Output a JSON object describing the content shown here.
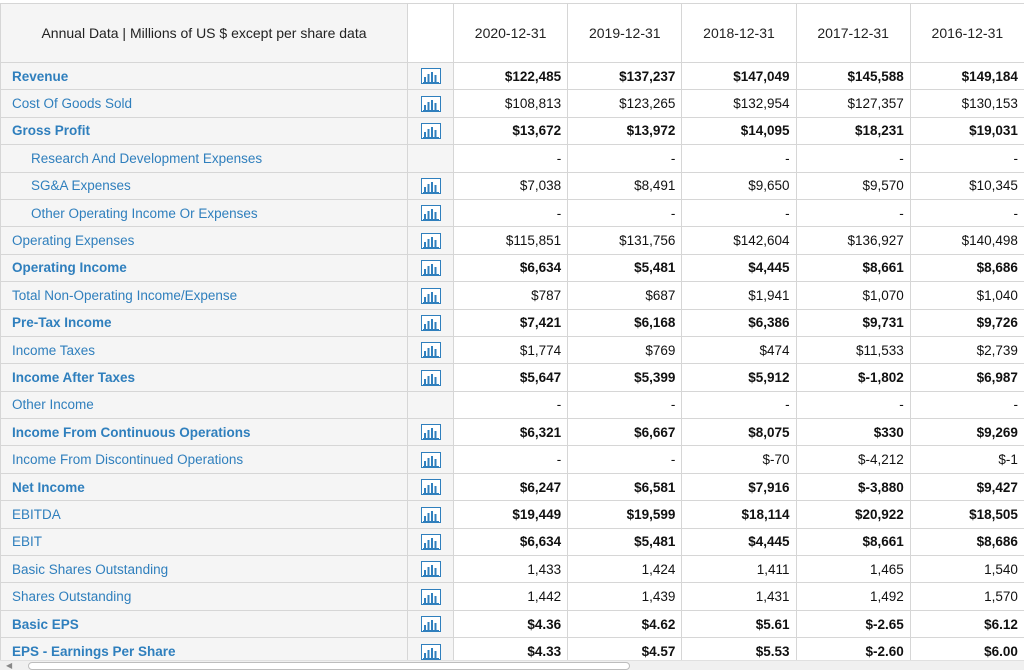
{
  "header": {
    "label": "Annual Data | Millions of US $ except per share data",
    "years": [
      "2020-12-31",
      "2019-12-31",
      "2018-12-31",
      "2017-12-31",
      "2016-12-31"
    ]
  },
  "icon": "bar-chart-icon",
  "colors": {
    "link": "#2f7fbd",
    "label_bg": "#f5f5f5",
    "border": "#d6d6d6"
  },
  "rows": [
    {
      "label": "Revenue",
      "bold": true,
      "indent": false,
      "icon": true,
      "values": [
        "$122,485",
        "$137,237",
        "$147,049",
        "$145,588",
        "$149,184"
      ]
    },
    {
      "label": "Cost Of Goods Sold",
      "bold": false,
      "indent": false,
      "icon": true,
      "values": [
        "$108,813",
        "$123,265",
        "$132,954",
        "$127,357",
        "$130,153"
      ]
    },
    {
      "label": "Gross Profit",
      "bold": true,
      "indent": false,
      "icon": true,
      "values": [
        "$13,672",
        "$13,972",
        "$14,095",
        "$18,231",
        "$19,031"
      ]
    },
    {
      "label": "Research And Development Expenses",
      "bold": false,
      "indent": true,
      "icon": false,
      "values": [
        "-",
        "-",
        "-",
        "-",
        "-"
      ]
    },
    {
      "label": "SG&A Expenses",
      "bold": false,
      "indent": true,
      "icon": true,
      "values": [
        "$7,038",
        "$8,491",
        "$9,650",
        "$9,570",
        "$10,345"
      ]
    },
    {
      "label": "Other Operating Income Or Expenses",
      "bold": false,
      "indent": true,
      "icon": true,
      "values": [
        "-",
        "-",
        "-",
        "-",
        "-"
      ]
    },
    {
      "label": "Operating Expenses",
      "bold": false,
      "indent": false,
      "icon": true,
      "values": [
        "$115,851",
        "$131,756",
        "$142,604",
        "$136,927",
        "$140,498"
      ]
    },
    {
      "label": "Operating Income",
      "bold": true,
      "indent": false,
      "icon": true,
      "values": [
        "$6,634",
        "$5,481",
        "$4,445",
        "$8,661",
        "$8,686"
      ]
    },
    {
      "label": "Total Non-Operating Income/Expense",
      "bold": false,
      "indent": false,
      "icon": true,
      "values": [
        "$787",
        "$687",
        "$1,941",
        "$1,070",
        "$1,040"
      ]
    },
    {
      "label": "Pre-Tax Income",
      "bold": true,
      "indent": false,
      "icon": true,
      "values": [
        "$7,421",
        "$6,168",
        "$6,386",
        "$9,731",
        "$9,726"
      ]
    },
    {
      "label": "Income Taxes",
      "bold": false,
      "indent": false,
      "icon": true,
      "values": [
        "$1,774",
        "$769",
        "$474",
        "$11,533",
        "$2,739"
      ]
    },
    {
      "label": "Income After Taxes",
      "bold": true,
      "indent": false,
      "icon": true,
      "values": [
        "$5,647",
        "$5,399",
        "$5,912",
        "$-1,802",
        "$6,987"
      ]
    },
    {
      "label": "Other Income",
      "bold": false,
      "indent": false,
      "icon": false,
      "values": [
        "-",
        "-",
        "-",
        "-",
        "-"
      ]
    },
    {
      "label": "Income From Continuous Operations",
      "bold": true,
      "indent": false,
      "icon": true,
      "values": [
        "$6,321",
        "$6,667",
        "$8,075",
        "$330",
        "$9,269"
      ]
    },
    {
      "label": "Income From Discontinued Operations",
      "bold": false,
      "indent": false,
      "icon": true,
      "values": [
        "-",
        "-",
        "$-70",
        "$-4,212",
        "$-1"
      ]
    },
    {
      "label": "Net Income",
      "bold": true,
      "indent": false,
      "icon": true,
      "values": [
        "$6,247",
        "$6,581",
        "$7,916",
        "$-3,880",
        "$9,427"
      ]
    },
    {
      "label": "EBITDA",
      "bold": false,
      "boldvals": true,
      "indent": false,
      "icon": true,
      "values": [
        "$19,449",
        "$19,599",
        "$18,114",
        "$20,922",
        "$18,505"
      ]
    },
    {
      "label": "EBIT",
      "bold": false,
      "boldvals": true,
      "indent": false,
      "icon": true,
      "values": [
        "$6,634",
        "$5,481",
        "$4,445",
        "$8,661",
        "$8,686"
      ]
    },
    {
      "label": "Basic Shares Outstanding",
      "bold": false,
      "indent": false,
      "icon": true,
      "values": [
        "1,433",
        "1,424",
        "1,411",
        "1,465",
        "1,540"
      ]
    },
    {
      "label": "Shares Outstanding",
      "bold": false,
      "indent": false,
      "icon": true,
      "values": [
        "1,442",
        "1,439",
        "1,431",
        "1,492",
        "1,570"
      ]
    },
    {
      "label": "Basic EPS",
      "bold": true,
      "indent": false,
      "icon": true,
      "values": [
        "$4.36",
        "$4.62",
        "$5.61",
        "$-2.65",
        "$6.12"
      ]
    },
    {
      "label": "EPS - Earnings Per Share",
      "bold": true,
      "indent": false,
      "icon": true,
      "values": [
        "$4.33",
        "$4.57",
        "$5.53",
        "$-2.60",
        "$6.00"
      ]
    }
  ]
}
